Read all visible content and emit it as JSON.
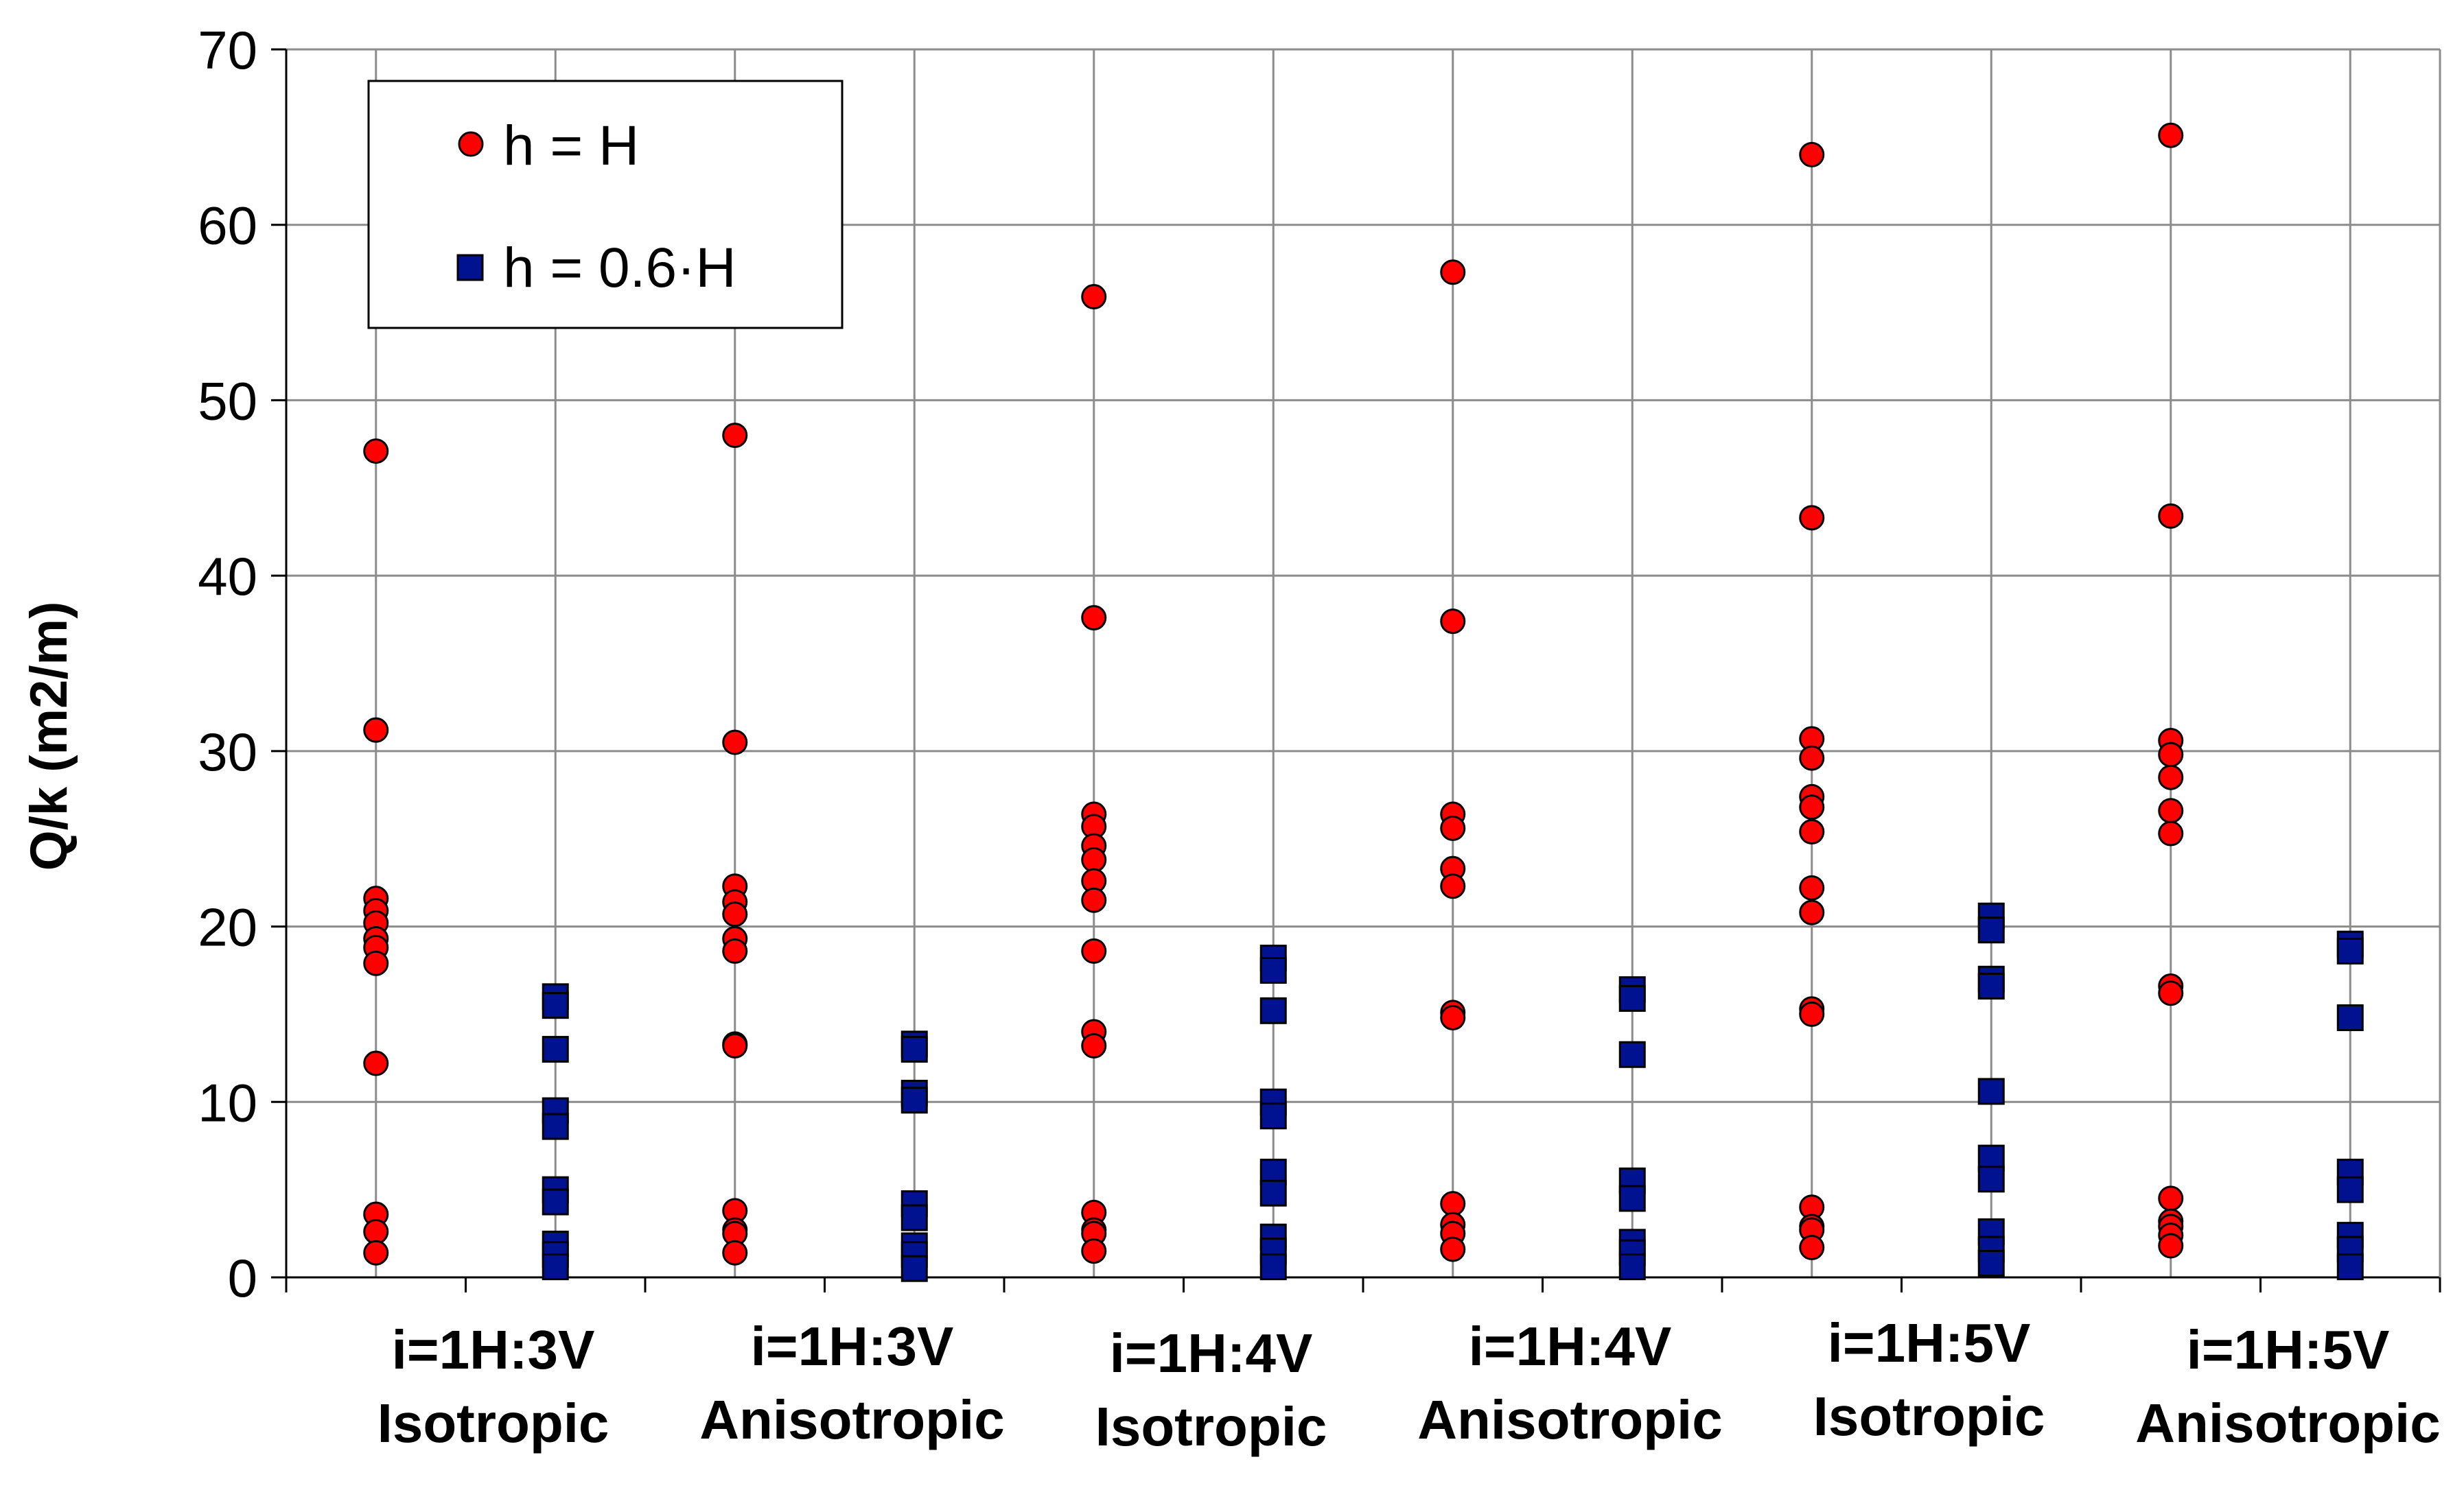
{
  "chart_data": {
    "type": "scatter",
    "title": "",
    "xlabel": "",
    "ylabel": "Q/k (m2/m)",
    "ylim": [
      0,
      70
    ],
    "yticks": [
      0,
      10,
      20,
      30,
      40,
      50,
      60,
      70
    ],
    "grid": true,
    "legend_position": "top-left",
    "categories": [
      "i=1H:3V|Isotropic",
      "i=1H:3V|Anisotropic",
      "i=1H:4V|Isotropic",
      "i=1H:4V|Anisotropic",
      "i=1H:5V|Isotropic",
      "i=1H:5V|Anisotropic"
    ],
    "category_labels": [
      {
        "line1": "i=1H:3V",
        "line2": "Isotropic"
      },
      {
        "line1": "i=1H:3V",
        "line2": "Anisotropic"
      },
      {
        "line1": "i=1H:4V",
        "line2": "Isotropic"
      },
      {
        "line1": "i=1H:4V",
        "line2": "Anisotropic"
      },
      {
        "line1": "i=1H:5V",
        "line2": "Isotropic"
      },
      {
        "line1": "i=1H:5V",
        "line2": "Anisotropic"
      }
    ],
    "series": [
      {
        "name": "h = H",
        "marker": "circle",
        "color": "#ff0000",
        "values": [
          [
            47.1,
            31.2,
            21.6,
            20.9,
            20.2,
            19.3,
            18.8,
            17.9,
            12.2,
            3.6,
            2.6,
            1.4
          ],
          [
            48.0,
            30.5,
            22.3,
            21.4,
            20.7,
            19.3,
            18.6,
            13.3,
            13.2,
            3.8,
            2.7,
            2.5,
            1.4
          ],
          [
            55.9,
            37.6,
            26.4,
            25.7,
            24.6,
            23.8,
            22.6,
            21.5,
            18.6,
            14.0,
            13.2,
            3.7,
            2.7,
            2.5,
            1.5
          ],
          [
            57.3,
            37.4,
            26.4,
            25.6,
            23.3,
            22.3,
            15.1,
            14.8,
            4.2,
            3.0,
            2.5,
            1.6
          ],
          [
            64.0,
            43.3,
            30.7,
            29.6,
            27.4,
            26.8,
            25.4,
            22.2,
            20.8,
            15.3,
            15.0,
            4.0,
            2.9,
            2.7,
            1.7
          ],
          [
            65.1,
            43.4,
            30.6,
            29.8,
            28.5,
            26.6,
            25.3,
            16.6,
            16.2,
            4.5,
            3.2,
            2.9,
            2.4,
            1.8
          ]
        ]
      },
      {
        "name": "h = 0.6·H",
        "marker": "square",
        "color": "#00128f",
        "values": [
          [
            16.0,
            15.5,
            13.0,
            9.5,
            8.6,
            5.0,
            4.3,
            1.9,
            1.3,
            0.6
          ],
          [
            13.3,
            13.0,
            10.5,
            10.1,
            4.2,
            3.4,
            1.8,
            1.3,
            0.5
          ],
          [
            18.2,
            17.5,
            15.2,
            10.0,
            9.2,
            6.0,
            4.8,
            2.3,
            1.5,
            0.6
          ],
          [
            16.4,
            15.9,
            12.7,
            5.5,
            4.5,
            2.0,
            1.4,
            0.6
          ],
          [
            20.6,
            19.8,
            17.0,
            16.6,
            10.6,
            6.8,
            5.6,
            2.6,
            1.6,
            0.8
          ],
          [
            19.0,
            18.6,
            14.8,
            6.0,
            5.0,
            2.4,
            1.6,
            0.6
          ]
        ]
      }
    ]
  }
}
